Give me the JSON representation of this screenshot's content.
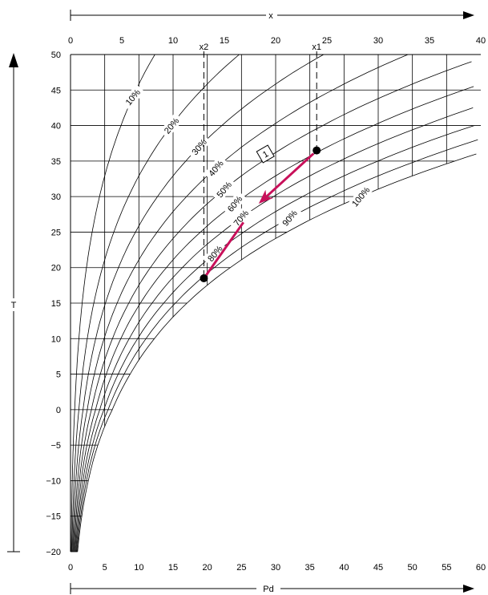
{
  "chart_data": {
    "type": "line",
    "title": "",
    "xlabel": "Pd",
    "xlabel_top": "x",
    "ylabel": "T",
    "bottom_axis": {
      "label": "Pd",
      "range": [
        0,
        60
      ],
      "ticks": [
        "0",
        "5",
        "10",
        "15",
        "20",
        "25",
        "30",
        "35",
        "40",
        "45",
        "50",
        "55",
        "60"
      ]
    },
    "top_axis": {
      "label": "x",
      "range": [
        0,
        40
      ],
      "ticks": [
        "0",
        "5",
        "10",
        "15",
        "20",
        "25",
        "30",
        "35",
        "40"
      ]
    },
    "y_axis": {
      "label": "T",
      "range": [
        -20,
        50
      ],
      "ticks": [
        "50",
        "45",
        "40",
        "35",
        "30",
        "25",
        "20",
        "15",
        "10",
        "5",
        "0",
        "−5",
        "−10",
        "−15",
        "−20"
      ]
    },
    "grid": true,
    "saturation_pressure": {
      "T": [
        -20,
        -15,
        -10,
        -5,
        0,
        5,
        10,
        15,
        20,
        25,
        30,
        35,
        40,
        45,
        50
      ],
      "Pd": [
        1.03,
        1.65,
        2.6,
        4.0,
        6.11,
        8.72,
        12.27,
        17.04,
        23.37,
        31.67,
        42.43,
        56.2,
        73.8,
        95.8,
        123.4
      ]
    },
    "series": [
      {
        "name": "10%",
        "rh": 0.1
      },
      {
        "name": "20%",
        "rh": 0.2
      },
      {
        "name": "30%",
        "rh": 0.3
      },
      {
        "name": "40%",
        "rh": 0.4
      },
      {
        "name": "50%",
        "rh": 0.5
      },
      {
        "name": "60%",
        "rh": 0.6
      },
      {
        "name": "70%",
        "rh": 0.7
      },
      {
        "name": "80%",
        "rh": 0.8
      },
      {
        "name": "90%",
        "rh": 0.9
      },
      {
        "name": "100%",
        "rh": 1.0
      }
    ],
    "markers": [
      {
        "name": "x1",
        "x": 24,
        "T": 36.5
      },
      {
        "name": "x2",
        "x": 13,
        "T": 18.5
      }
    ],
    "annotation": {
      "text": "1",
      "x": 19,
      "T": 36
    },
    "arrow_color": "#c8105a"
  }
}
